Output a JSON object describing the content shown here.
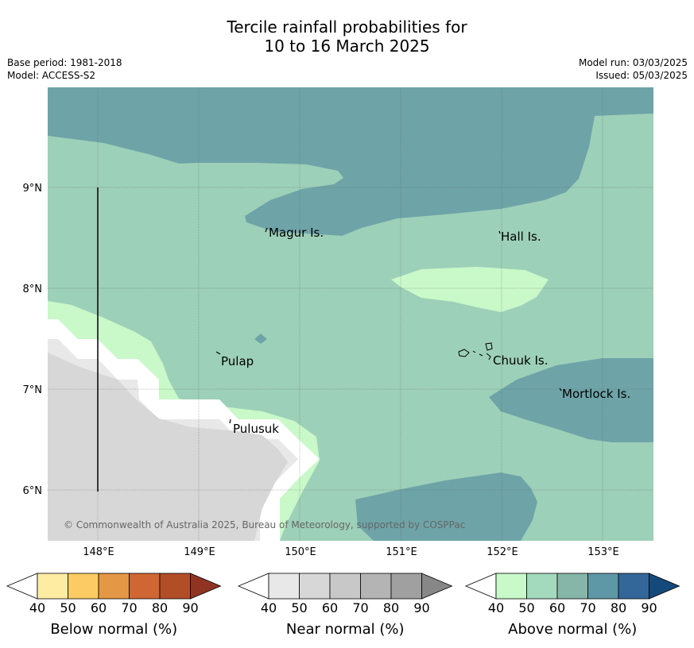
{
  "title": {
    "line1": "Tercile rainfall probabilities for",
    "line2": "10 to 16 March 2025"
  },
  "info": {
    "base_period": "Base period: 1981-2018",
    "model": "Model: ACCESS-S2",
    "model_run": "Model run: 03/03/2025",
    "issued": "Issued: 05/03/2025"
  },
  "map": {
    "lat_labels": [
      "9°N",
      "8°N",
      "7°N",
      "6°N"
    ],
    "lon_labels": [
      "148°E",
      "149°E",
      "150°E",
      "151°E",
      "152°E",
      "153°E"
    ],
    "places": [
      "Magur Is.",
      "Hall Is.",
      "Pulap",
      "Chuuk Is.",
      "Mortlock Is.",
      "Pulusuk"
    ],
    "copyright": "© Commonwealth of Australia 2025, Bureau of Meteorology, supported by COSPPac",
    "colors": {
      "above_50": "#9dd0b8",
      "above_60": "#6ea4a8",
      "above_40": "#c9f8c9",
      "near_50": "#d7d7d7",
      "near_40": "#e8e8e8",
      "ocean_white": "#ffffff"
    }
  },
  "colorbars": [
    {
      "label": "Below normal (%)",
      "ticks": [
        "40",
        "50",
        "60",
        "70",
        "80",
        "90"
      ],
      "colors": [
        "#ffffff",
        "#ffeca3",
        "#fdcb63",
        "#e49745",
        "#cf6633",
        "#b24e27",
        "#913323"
      ]
    },
    {
      "label": "Near normal (%)",
      "ticks": [
        "40",
        "50",
        "60",
        "70",
        "80",
        "90"
      ],
      "colors": [
        "#ffffff",
        "#e8e8e8",
        "#d7d7d7",
        "#c8c8c8",
        "#b4b4b4",
        "#a0a0a0",
        "#878787"
      ]
    },
    {
      "label": "Above normal (%)",
      "ticks": [
        "40",
        "50",
        "60",
        "70",
        "80",
        "90"
      ],
      "colors": [
        "#ffffff",
        "#c9f8c9",
        "#a3d9bd",
        "#86b6a7",
        "#5e97a6",
        "#336799",
        "#14497c"
      ]
    }
  ]
}
